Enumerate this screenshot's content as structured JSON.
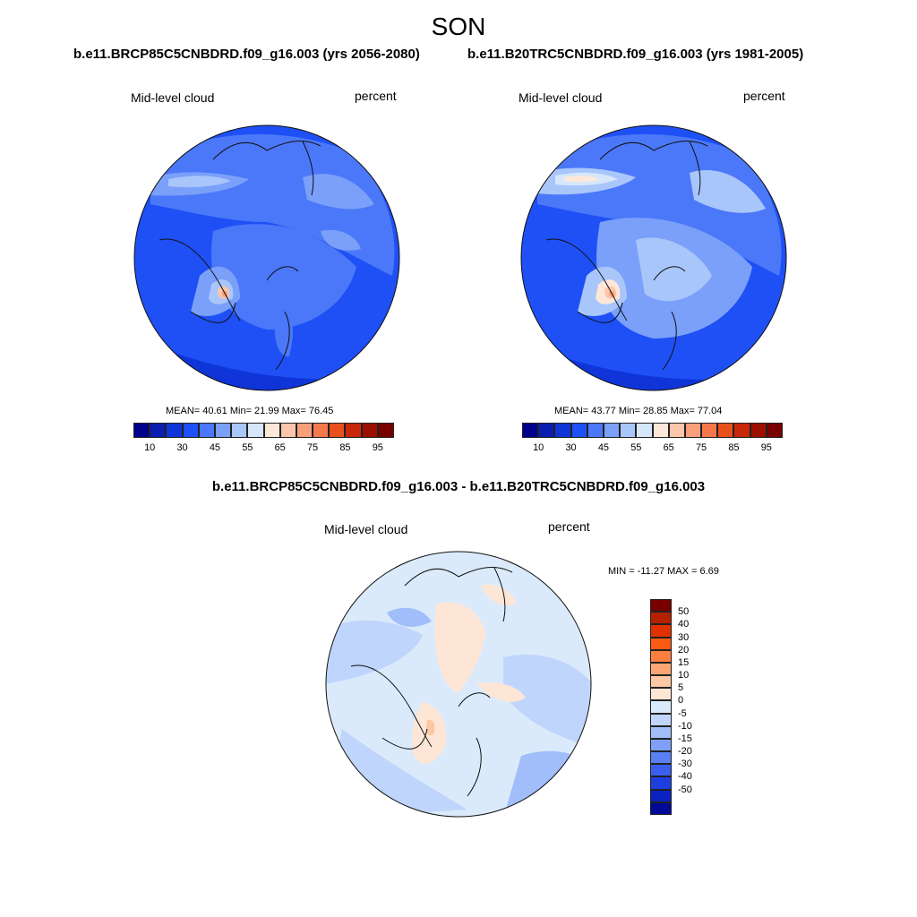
{
  "title": "SON",
  "panels": [
    {
      "run_title": "b.e11.BRCP85C5CNBDRD.f09_g16.003 (yrs 2056-2080)",
      "variable": "Mid-level cloud",
      "units": "percent",
      "stats": "MEAN=  40.61  Min=  21.99  Max=  76.45"
    },
    {
      "run_title": "b.e11.B20TRC5CNBDRD.f09_g16.003 (yrs 1981-2005)",
      "variable": "Mid-level cloud",
      "units": "percent",
      "stats": "MEAN=  43.77  Min=  28.85  Max=  77.04"
    }
  ],
  "horizontal_colorbar": {
    "colors": [
      "#00008c",
      "#0a1db0",
      "#0f35d8",
      "#1e50f5",
      "#4b78f8",
      "#7aa0fa",
      "#a9c6fb",
      "#d6e6fb",
      "#fde7d8",
      "#fbc6a9",
      "#f7a07a",
      "#f4784c",
      "#e8501e",
      "#c8280a",
      "#9c0f00",
      "#780000"
    ],
    "labels": [
      "10",
      "30",
      "45",
      "55",
      "65",
      "75",
      "85",
      "95"
    ]
  },
  "difference": {
    "title": "b.e11.BRCP85C5CNBDRD.f09_g16.003 - b.e11.B20TRC5CNBDRD.f09_g16.003",
    "variable": "Mid-level cloud",
    "units": "percent",
    "stats": "MIN = -11.27 MAX =   6.69",
    "colorbar": {
      "colors": [
        "#780000",
        "#b42000",
        "#e03200",
        "#fa5a14",
        "#fb8040",
        "#fca676",
        "#fdc8a5",
        "#fde6d5",
        "#dbeafb",
        "#bfd5fb",
        "#a1bdfa",
        "#7f9ff8",
        "#5a7ff5",
        "#3a5ff0",
        "#1e3fe0",
        "#0a22c0",
        "#000a96"
      ],
      "labels": [
        "50",
        "40",
        "30",
        "20",
        "15",
        "10",
        "5",
        "0",
        "-5",
        "-10",
        "-15",
        "-20",
        "-30",
        "-40",
        "-50"
      ]
    }
  }
}
